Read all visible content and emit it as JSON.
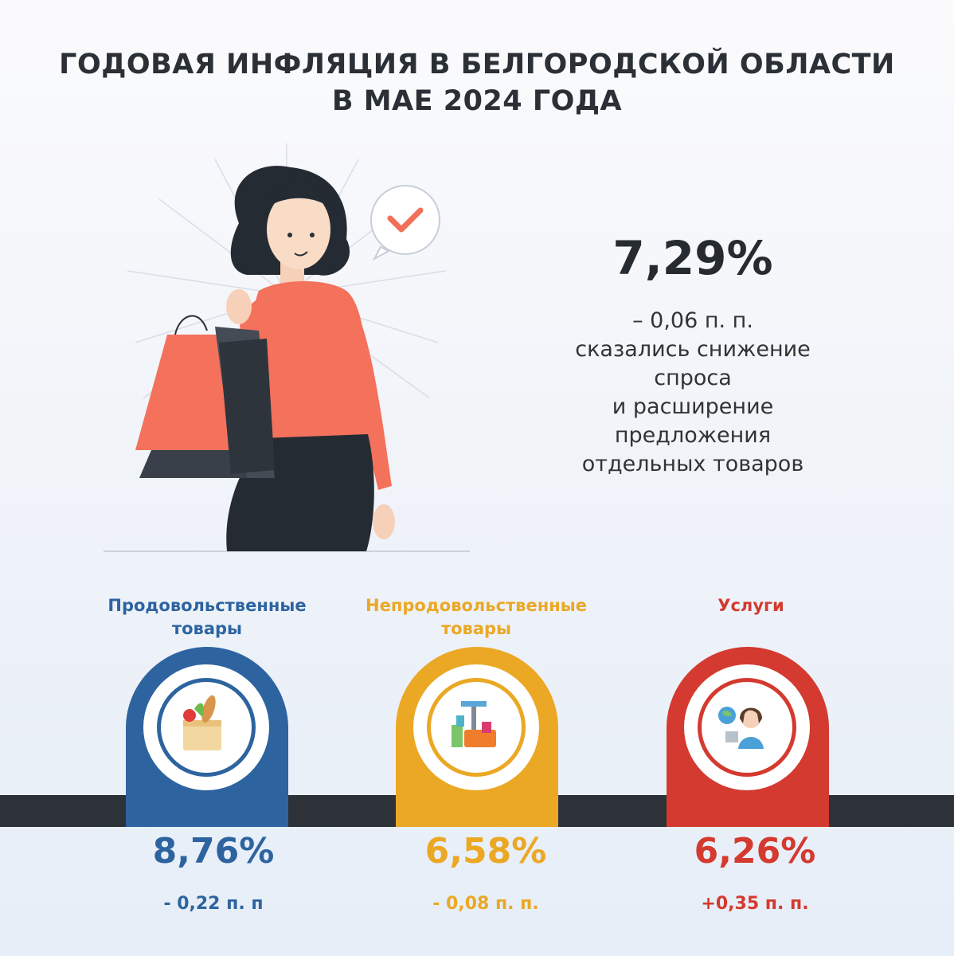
{
  "title": {
    "line1": "ГОДОВАЯ ИНФЛЯЦИЯ В БЕЛГОРОДСКОЙ ОБЛАСТИ",
    "line2": "В МАЕ 2024 ГОДА"
  },
  "headline": {
    "value": "7,29%",
    "change": "– 0,06 п. п.",
    "description_lines": [
      "сказались снижение",
      "спроса",
      "и расширение",
      "предложения",
      "отдельных товаров"
    ]
  },
  "categories": [
    {
      "label_lines": [
        "Продовольственные",
        "товары"
      ],
      "value": "8,76%",
      "change": "- 0,22 п. п",
      "color": "#2d64a0",
      "icon": "grocery-bag-icon"
    },
    {
      "label_lines": [
        "Непродовольственные",
        "товары"
      ],
      "value": "6,58%",
      "change": "- 0,08 п. п.",
      "color": "#eba825",
      "icon": "household-goods-icon"
    },
    {
      "label_lines": [
        "Услуги"
      ],
      "value": "6,26%",
      "change": "+0,35 п. п.",
      "color": "#d43a2f",
      "icon": "support-operator-icon"
    }
  ],
  "colors": {
    "accent_red": "#f0705a",
    "dark": "#2d3238"
  }
}
